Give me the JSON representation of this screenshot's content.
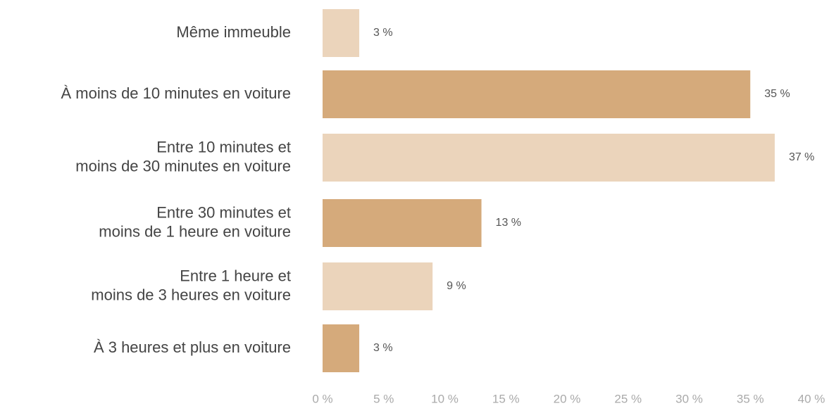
{
  "chart_data": {
    "type": "barh",
    "categories": [
      [
        "Même immeuble"
      ],
      [
        "À moins de 10 minutes en voiture"
      ],
      [
        "Entre 10 minutes et",
        "moins de 30 minutes en voiture"
      ],
      [
        "Entre 30 minutes et",
        "moins de 1 heure en voiture"
      ],
      [
        "Entre 1 heure et",
        "moins de 3 heures en voiture"
      ],
      [
        "À 3 heures et plus en voiture"
      ]
    ],
    "values": [
      3,
      35,
      37,
      13,
      9,
      3
    ],
    "value_labels": [
      "3 %",
      "35 %",
      "37 %",
      "13 %",
      "9 %",
      "3 %"
    ],
    "colors": [
      "#ebd4bb",
      "#d5aa7b",
      "#ebd4bb",
      "#d5aa7b",
      "#ebd4bb",
      "#d5aa7b"
    ],
    "xlim": [
      0,
      40
    ],
    "xticks": [
      {
        "value": 0,
        "label": "0 %"
      },
      {
        "value": 5,
        "label": "5 %"
      },
      {
        "value": 10,
        "label": "10 %"
      },
      {
        "value": 15,
        "label": "15 %"
      },
      {
        "value": 20,
        "label": "20 %"
      },
      {
        "value": 25,
        "label": "25 %"
      },
      {
        "value": 30,
        "label": "30 %"
      },
      {
        "value": 35,
        "label": "35 %"
      },
      {
        "value": 40,
        "label": "40 %"
      }
    ],
    "grid": false
  }
}
